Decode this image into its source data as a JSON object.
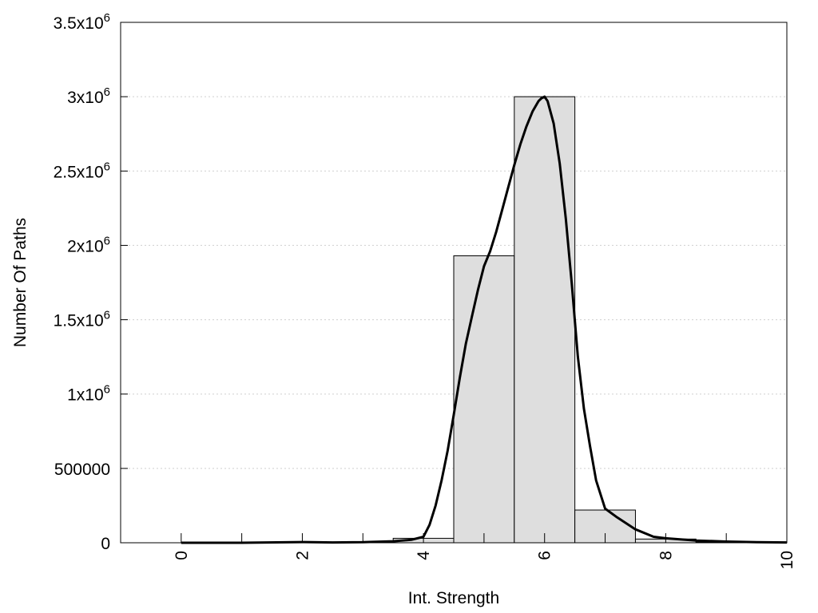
{
  "chart_data": {
    "type": "bar",
    "xlabel": "Int. Strength",
    "ylabel": "Number Of Paths",
    "xlim": [
      -1,
      10
    ],
    "ylim": [
      0,
      3500000
    ],
    "grid": "horizontal dotted",
    "x_ticks": [
      "0",
      "2",
      "4",
      "6",
      "8",
      "10"
    ],
    "x_tick_values": [
      0,
      2,
      4,
      6,
      8,
      10
    ],
    "x_minor_tick_values": [
      1,
      3,
      5,
      7,
      9
    ],
    "y_ticks": [
      {
        "value": 0,
        "mantissa": "0",
        "sup": ""
      },
      {
        "value": 500000,
        "mantissa": "500000",
        "sup": ""
      },
      {
        "value": 1000000,
        "mantissa": "1x10",
        "sup": "6"
      },
      {
        "value": 1500000,
        "mantissa": "1.5x10",
        "sup": "6"
      },
      {
        "value": 2000000,
        "mantissa": "2x10",
        "sup": "6"
      },
      {
        "value": 2500000,
        "mantissa": "2.5x10",
        "sup": "6"
      },
      {
        "value": 3000000,
        "mantissa": "3x10",
        "sup": "6"
      },
      {
        "value": 3500000,
        "mantissa": "3.5x10",
        "sup": "6"
      }
    ],
    "bars": {
      "width": 1,
      "x": [
        0,
        1,
        2,
        3,
        4,
        5,
        6,
        7,
        8,
        9,
        10
      ],
      "values": [
        0,
        0,
        2000,
        5000,
        30000,
        1930000,
        3000000,
        220000,
        25000,
        5000,
        2000
      ]
    },
    "curve": {
      "x": [
        0,
        1,
        2,
        2.5,
        3,
        3.5,
        3.8,
        4.0,
        4.1,
        4.2,
        4.3,
        4.4,
        4.5,
        4.6,
        4.7,
        4.8,
        4.9,
        5.0,
        5.1,
        5.2,
        5.3,
        5.4,
        5.5,
        5.6,
        5.7,
        5.8,
        5.9,
        5.95,
        6.0,
        6.05,
        6.15,
        6.25,
        6.35,
        6.45,
        6.55,
        6.65,
        6.75,
        6.85,
        7.0,
        7.2,
        7.5,
        7.8,
        8.0,
        8.5,
        9.0,
        9.5,
        10.0
      ],
      "y": [
        0,
        0,
        5000,
        2000,
        4000,
        10000,
        20000,
        40000,
        120000,
        250000,
        420000,
        620000,
        860000,
        1110000,
        1340000,
        1520000,
        1700000,
        1860000,
        1960000,
        2090000,
        2240000,
        2390000,
        2540000,
        2680000,
        2800000,
        2900000,
        2970000,
        2990000,
        3000000,
        2970000,
        2820000,
        2550000,
        2180000,
        1740000,
        1250000,
        900000,
        650000,
        420000,
        230000,
        170000,
        90000,
        40000,
        30000,
        15000,
        8000,
        4000,
        2000
      ]
    }
  }
}
